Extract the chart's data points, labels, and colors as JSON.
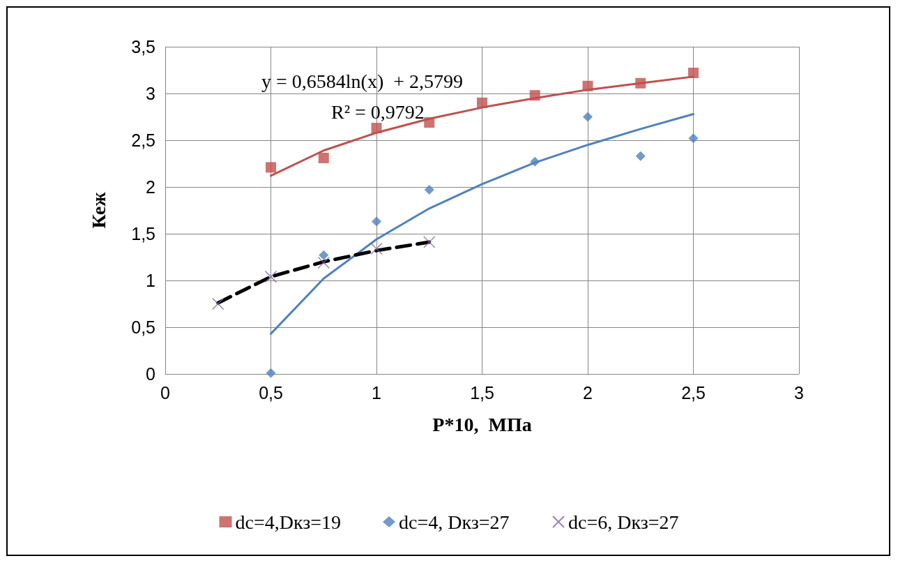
{
  "chart_data": {
    "type": "scatter",
    "xlabel": "P*10,  МПа",
    "ylabel": "Кеж",
    "xlim": [
      0,
      3
    ],
    "xticks": [
      0,
      {
        "value": 0.5,
        "label": "0,5"
      },
      1,
      {
        "value": 1.5,
        "label": "1,5"
      },
      2,
      {
        "value": 2.5,
        "label": "2,5"
      },
      3
    ],
    "ylim": [
      0,
      3.5
    ],
    "yticks": [
      0,
      {
        "value": 0.5,
        "label": "0,5"
      },
      1,
      {
        "value": 1.5,
        "label": "1,5"
      },
      2,
      {
        "value": 2.5,
        "label": "2,5"
      },
      3,
      {
        "value": 3.5,
        "label": "3,5"
      }
    ],
    "grid": true,
    "legend": "bottom",
    "annotations": [
      "y = 0,6584ln(x)  + 2,5799",
      "R² = 0,9792"
    ],
    "series": [
      {
        "type": "line",
        "color": "#c0504d",
        "marker": "none",
        "line_style": "solid",
        "x": [
          0.5,
          0.75,
          1,
          1.25,
          1.5,
          1.75,
          2,
          2.25,
          2.5
        ],
        "values": [
          2.12,
          2.39,
          2.58,
          2.73,
          2.85,
          2.95,
          3.04,
          3.11,
          3.18
        ]
      },
      {
        "type": "line",
        "color": "#4f81bd",
        "marker": "none",
        "line_style": "solid",
        "x": [
          0.5,
          0.75,
          1,
          1.25,
          1.5,
          1.75,
          2,
          2.25,
          2.5
        ],
        "values": [
          0.43,
          1.02,
          1.44,
          1.77,
          2.03,
          2.26,
          2.45,
          2.62,
          2.78
        ]
      },
      {
        "type": "line",
        "color": "#000000",
        "marker": "none",
        "line_style": "dashed",
        "x": [
          0.25,
          0.5,
          0.75,
          1,
          1.25
        ],
        "values": [
          0.76,
          1.04,
          1.2,
          1.32,
          1.41
        ]
      },
      {
        "name": "dc=4,Dкз=19",
        "color": "#c0504d",
        "marker": "square",
        "x": [
          0.5,
          0.75,
          1,
          1.25,
          1.5,
          1.75,
          2,
          2.25,
          2.5
        ],
        "values": [
          2.21,
          2.31,
          2.63,
          2.69,
          2.9,
          2.98,
          3.08,
          3.11,
          3.22
        ]
      },
      {
        "name": "dc=4, Dкз=27",
        "color": "#4f81bd",
        "marker": "diamond",
        "x": [
          0.5,
          0.75,
          1,
          1.25,
          1.75,
          2,
          2.25,
          2.5
        ],
        "values": [
          0.01,
          1.27,
          1.63,
          1.97,
          2.27,
          2.75,
          2.33,
          2.52
        ]
      },
      {
        "name": "dc=6, Dкз=27",
        "color": "#8064a2",
        "marker": "cross",
        "x": [
          0.25,
          0.5,
          0.75,
          1,
          1.25
        ],
        "values": [
          0.75,
          1.04,
          1.19,
          1.34,
          1.41
        ]
      }
    ]
  }
}
